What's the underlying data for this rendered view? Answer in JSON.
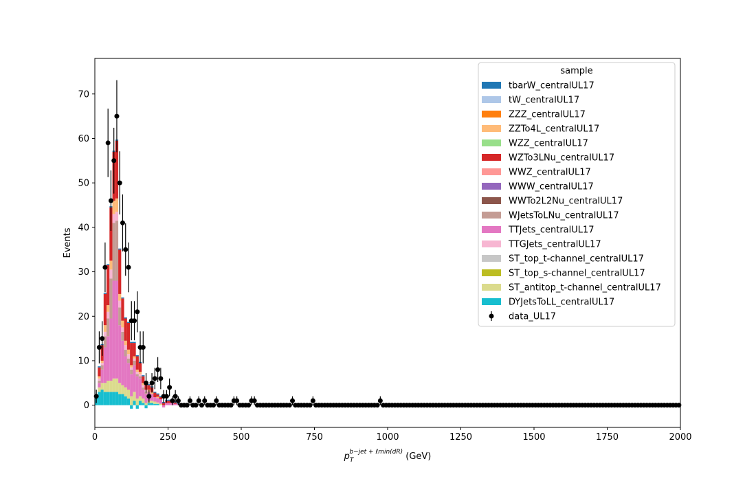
{
  "chart_data": {
    "type": "bar",
    "subtype": "stacked-histogram-with-data-points",
    "xlabel": "p_T^{b-jet + ℓ_min(dR)} (GeV)",
    "ylabel": "Events",
    "xlim": [
      0,
      2000
    ],
    "ylim": [
      -5,
      78
    ],
    "xticks": [
      0,
      250,
      500,
      750,
      1000,
      1250,
      1500,
      1750,
      2000
    ],
    "yticks": [
      0,
      10,
      20,
      30,
      40,
      50,
      60,
      70
    ],
    "bin_width": 10,
    "grid": false,
    "legend": {
      "title": "sample",
      "position": "top-right"
    },
    "stack_order": [
      "DYJetsToLL_centralUL17",
      "ST_antitop_t-channel_centralUL17",
      "ST_top_s-channel_centralUL17",
      "ST_top_t-channel_centralUL17",
      "TTGJets_centralUL17",
      "TTJets_centralUL17",
      "WJetsToLNu_centralUL17",
      "WWTo2L2Nu_centralUL17",
      "WWW_centralUL17",
      "WWZ_centralUL17",
      "WZTo3LNu_centralUL17",
      "WZZ_centralUL17",
      "ZZTo4L_centralUL17",
      "ZZZ_centralUL17",
      "tW_centralUL17",
      "tbarW_centralUL17"
    ],
    "legend_entries": [
      {
        "name": "tbarW_centralUL17",
        "color": "#1f77b4"
      },
      {
        "name": "tW_centralUL17",
        "color": "#aec7e8"
      },
      {
        "name": "ZZZ_centralUL17",
        "color": "#ff7f0e"
      },
      {
        "name": "ZZTo4L_centralUL17",
        "color": "#ffbb78"
      },
      {
        "name": "WZZ_centralUL17",
        "color": "#98df8a"
      },
      {
        "name": "WZTo3LNu_centralUL17",
        "color": "#d62728"
      },
      {
        "name": "WWZ_centralUL17",
        "color": "#ff9896"
      },
      {
        "name": "WWW_centralUL17",
        "color": "#9467bd"
      },
      {
        "name": "WWTo2L2Nu_centralUL17",
        "color": "#8c564b"
      },
      {
        "name": "WJetsToLNu_centralUL17",
        "color": "#c49c94"
      },
      {
        "name": "TTJets_centralUL17",
        "color": "#e377c2"
      },
      {
        "name": "TTGJets_centralUL17",
        "color": "#f7b6d2"
      },
      {
        "name": "ST_top_t-channel_centralUL17",
        "color": "#c7c7c7"
      },
      {
        "name": "ST_top_s-channel_centralUL17",
        "color": "#bcbd22"
      },
      {
        "name": "ST_antitop_t-channel_centralUL17",
        "color": "#dbdb8d"
      },
      {
        "name": "DYJetsToLL_centralUL17",
        "color": "#17becf"
      },
      {
        "name": "data_UL17",
        "color": "#000000",
        "marker": "point-with-errorbar"
      }
    ],
    "mc_bins": [
      {
        "x": 10,
        "DY": 2.0,
        "STt": 0.0,
        "TT": 0.0,
        "WZ": 0.0,
        "WJ": 0.0,
        "TTG": 0.0,
        "ZZ": 0.0
      },
      {
        "x": 20,
        "DY": 3.0,
        "STt": 1.0,
        "TT": 1.0,
        "WZ": 2.0,
        "WJ": 0.5,
        "TTG": 0.5,
        "ZZ": 0.5
      },
      {
        "x": 30,
        "DY": 3.5,
        "STt": 1.5,
        "TT": 3.0,
        "WZ": 3.5,
        "WJ": 1.0,
        "TTG": 0.5,
        "ZZ": 0.5
      },
      {
        "x": 40,
        "DY": 3.0,
        "STt": 2.0,
        "TT": 8.0,
        "WZ": 7.0,
        "WJ": 2.5,
        "TTG": 1.0,
        "ZZ": 1.5
      },
      {
        "x": 50,
        "DY": 3.0,
        "STt": 2.5,
        "TT": 10.0,
        "WZ": 9.0,
        "WJ": 4.0,
        "TTG": 1.5,
        "ZZ": 1.5
      },
      {
        "x": 60,
        "DY": 3.0,
        "STt": 2.5,
        "TT": 14.0,
        "WZ": 12.0,
        "WJ": 9.0,
        "TTG": 2.0,
        "ZZ": 2.0
      },
      {
        "x": 70,
        "DY": 3.0,
        "STt": 3.0,
        "TT": 22.0,
        "WZ": 11.0,
        "WJ": 13.0,
        "TTG": 2.0,
        "ZZ": 3.0
      },
      {
        "x": 80,
        "DY": 3.0,
        "STt": 3.0,
        "TT": 22.0,
        "WZ": 13.0,
        "WJ": 13.5,
        "TTG": 2.0,
        "ZZ": 3.0
      },
      {
        "x": 90,
        "DY": 2.5,
        "STt": 2.5,
        "TT": 13.0,
        "WZ": 10.0,
        "WJ": 4.0,
        "TTG": 1.5,
        "ZZ": 1.5
      },
      {
        "x": 100,
        "DY": 2.5,
        "STt": 2.0,
        "TT": 10.0,
        "WZ": 5.0,
        "WJ": 2.0,
        "TTG": 1.0,
        "ZZ": 1.5
      },
      {
        "x": 110,
        "DY": 2.0,
        "STt": 2.0,
        "TT": 7.0,
        "WZ": 5.0,
        "WJ": 1.5,
        "TTG": 1.0,
        "ZZ": 1.0
      },
      {
        "x": 120,
        "DY": 1.5,
        "STt": 2.0,
        "TT": 6.0,
        "WZ": 6.0,
        "WJ": 1.0,
        "TTG": 1.0,
        "ZZ": 1.0
      },
      {
        "x": 130,
        "DY": -0.8,
        "STt": 2.0,
        "TT": 5.0,
        "WZ": 5.0,
        "WJ": 1.0,
        "TTG": 0.5,
        "ZZ": 0.5
      },
      {
        "x": 140,
        "DY": 1.0,
        "STt": 2.0,
        "TT": 6.0,
        "WZ": 3.0,
        "WJ": 1.0,
        "TTG": 0.5,
        "ZZ": 0.5
      },
      {
        "x": 150,
        "DY": -0.8,
        "STt": 1.5,
        "TT": 5.0,
        "WZ": 3.0,
        "WJ": 0.5,
        "TTG": 0.5,
        "ZZ": 0.5
      },
      {
        "x": 160,
        "DY": 1.0,
        "STt": 1.0,
        "TT": 4.0,
        "WZ": 2.0,
        "WJ": 0.5,
        "TTG": 0.5,
        "ZZ": 0.5
      },
      {
        "x": 170,
        "DY": 0.5,
        "STt": 1.0,
        "TT": 2.0,
        "WZ": 1.5,
        "WJ": 0.5,
        "TTG": 0.5,
        "ZZ": 0.5
      },
      {
        "x": 180,
        "DY": -0.7,
        "STt": 0.5,
        "TT": 2.0,
        "WZ": 1.0,
        "WJ": 0.5,
        "TTG": 0.5,
        "ZZ": 0.0
      },
      {
        "x": 190,
        "DY": 0.5,
        "STt": 0.5,
        "TT": 2.0,
        "WZ": 1.0,
        "WJ": 0.0,
        "TTG": 0.0,
        "ZZ": 0.5
      },
      {
        "x": 200,
        "DY": 0.5,
        "STt": 0.5,
        "TT": 1.5,
        "WZ": 1.0,
        "WJ": 0.0,
        "TTG": 0.0,
        "ZZ": 0.5
      },
      {
        "x": 210,
        "DY": 0.3,
        "STt": 0.5,
        "TT": 1.0,
        "WZ": 1.0,
        "WJ": 0.0,
        "TTG": 0.0,
        "ZZ": 0.0
      },
      {
        "x": 220,
        "DY": 0.3,
        "STt": 0.3,
        "TT": 1.0,
        "WZ": 0.5,
        "WJ": 0.0,
        "TTG": 0.0,
        "ZZ": 0.3
      },
      {
        "x": 230,
        "DY": 0.0,
        "STt": 0.3,
        "TT": 1.0,
        "WZ": 0.5,
        "WJ": 0.0,
        "TTG": 0.0,
        "ZZ": 0.0
      },
      {
        "x": 240,
        "DY": 0.0,
        "STt": 0.0,
        "TT": -0.5,
        "WZ": 0.5,
        "WJ": 0.0,
        "TTG": 0.0,
        "ZZ": 0.0
      },
      {
        "x": 250,
        "DY": 0.0,
        "STt": 0.0,
        "TT": 0.5,
        "WZ": 0.5,
        "WJ": 0.0,
        "TTG": 0.0,
        "ZZ": 0.0
      },
      {
        "x": 260,
        "DY": 0.0,
        "STt": 0.0,
        "TT": 0.5,
        "WZ": 0.5,
        "WJ": 0.0,
        "TTG": 0.0,
        "ZZ": 0.0
      },
      {
        "x": 270,
        "DY": 0.0,
        "STt": 0.0,
        "TT": 0.5,
        "WZ": 0.3,
        "WJ": 0.0,
        "TTG": 0.0,
        "ZZ": 0.0
      },
      {
        "x": 280,
        "DY": 0.0,
        "STt": 0.0,
        "TT": 0.3,
        "WZ": 0.3,
        "WJ": 0.0,
        "TTG": 0.0,
        "ZZ": 0.0
      },
      {
        "x": 290,
        "DY": 0.0,
        "STt": 0.0,
        "TT": 0.3,
        "WZ": 0.0,
        "WJ": 0.0,
        "TTG": 0.0,
        "ZZ": 0.0
      }
    ],
    "data_points": [
      {
        "x": 5,
        "y": 2,
        "err": 1.5
      },
      {
        "x": 15,
        "y": 13,
        "err": 3.6
      },
      {
        "x": 25,
        "y": 15,
        "err": 3.9
      },
      {
        "x": 35,
        "y": 31,
        "err": 5.6
      },
      {
        "x": 45,
        "y": 59,
        "err": 7.7
      },
      {
        "x": 55,
        "y": 46,
        "err": 6.8
      },
      {
        "x": 65,
        "y": 55,
        "err": 7.4
      },
      {
        "x": 75,
        "y": 65,
        "err": 8.1
      },
      {
        "x": 85,
        "y": 50,
        "err": 7.1
      },
      {
        "x": 95,
        "y": 41,
        "err": 6.4
      },
      {
        "x": 105,
        "y": 35,
        "err": 5.9
      },
      {
        "x": 115,
        "y": 31,
        "err": 5.6
      },
      {
        "x": 125,
        "y": 19,
        "err": 4.4
      },
      {
        "x": 135,
        "y": 19,
        "err": 4.4
      },
      {
        "x": 145,
        "y": 21,
        "err": 4.6
      },
      {
        "x": 155,
        "y": 13,
        "err": 3.6
      },
      {
        "x": 165,
        "y": 13,
        "err": 3.6
      },
      {
        "x": 175,
        "y": 5,
        "err": 2.2
      },
      {
        "x": 185,
        "y": 2,
        "err": 1.4
      },
      {
        "x": 195,
        "y": 5,
        "err": 2.2
      },
      {
        "x": 205,
        "y": 6,
        "err": 2.4
      },
      {
        "x": 215,
        "y": 8,
        "err": 2.8
      },
      {
        "x": 225,
        "y": 6,
        "err": 2.4
      },
      {
        "x": 235,
        "y": 2,
        "err": 1.4
      },
      {
        "x": 245,
        "y": 2,
        "err": 1.4
      },
      {
        "x": 255,
        "y": 4,
        "err": 2.0
      },
      {
        "x": 265,
        "y": 1,
        "err": 1.0
      },
      {
        "x": 275,
        "y": 2,
        "err": 1.4
      },
      {
        "x": 285,
        "y": 1,
        "err": 1.0
      },
      {
        "x": 295,
        "y": 0,
        "err": 0
      },
      {
        "x": 305,
        "y": 0,
        "err": 0
      },
      {
        "x": 315,
        "y": 0,
        "err": 0
      },
      {
        "x": 325,
        "y": 1,
        "err": 1.0
      },
      {
        "x": 335,
        "y": 0,
        "err": 0
      },
      {
        "x": 345,
        "y": 0,
        "err": 0
      },
      {
        "x": 355,
        "y": 1,
        "err": 1.0
      },
      {
        "x": 365,
        "y": 0,
        "err": 0
      },
      {
        "x": 375,
        "y": 1,
        "err": 1.0
      },
      {
        "x": 385,
        "y": 0,
        "err": 0
      },
      {
        "x": 395,
        "y": 0,
        "err": 0
      },
      {
        "x": 405,
        "y": 0,
        "err": 0
      },
      {
        "x": 415,
        "y": 1,
        "err": 1.0
      },
      {
        "x": 475,
        "y": 1,
        "err": 1.0
      },
      {
        "x": 485,
        "y": 1,
        "err": 1.0
      },
      {
        "x": 535,
        "y": 1,
        "err": 1.0
      },
      {
        "x": 545,
        "y": 1,
        "err": 1.0
      },
      {
        "x": 675,
        "y": 1,
        "err": 1.0
      },
      {
        "x": 745,
        "y": 1,
        "err": 1.0
      },
      {
        "x": 975,
        "y": 1,
        "err": 1.0
      }
    ],
    "data_zero_range": [
      295,
      2000
    ]
  }
}
